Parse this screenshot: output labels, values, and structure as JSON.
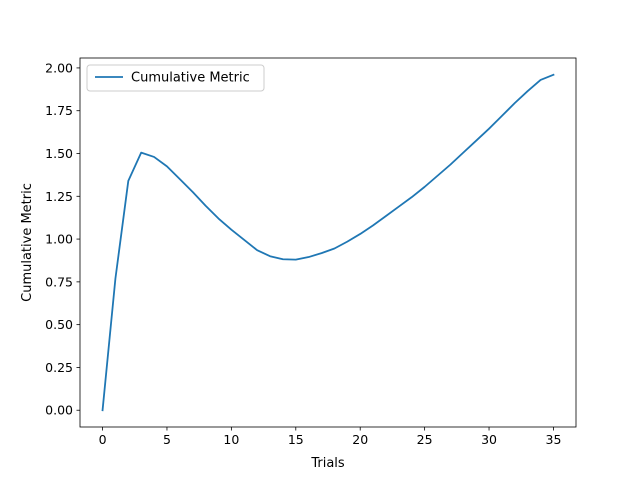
{
  "chart_data": {
    "type": "line",
    "title": "",
    "xlabel": "Trials",
    "ylabel": "Cumulative Metric",
    "xlim": [
      -1.75,
      36.75
    ],
    "ylim": [
      -0.098,
      2.058
    ],
    "xticks": [
      0,
      5,
      10,
      15,
      20,
      25,
      30,
      35
    ],
    "xtick_labels": [
      "0",
      "5",
      "10",
      "15",
      "20",
      "25",
      "30",
      "35"
    ],
    "yticks": [
      0.0,
      0.25,
      0.5,
      0.75,
      1.0,
      1.25,
      1.5,
      1.75,
      2.0
    ],
    "ytick_labels": [
      "0.00",
      "0.25",
      "0.50",
      "0.75",
      "1.00",
      "1.25",
      "1.50",
      "1.75",
      "2.00"
    ],
    "grid": false,
    "legend_position": "upper-left",
    "series": [
      {
        "name": "Cumulative Metric",
        "color": "#1f77b4",
        "x": [
          0,
          1,
          2,
          3,
          4,
          5,
          6,
          7,
          8,
          9,
          10,
          11,
          12,
          13,
          14,
          15,
          16,
          17,
          18,
          19,
          20,
          21,
          22,
          23,
          24,
          25,
          26,
          27,
          28,
          29,
          30,
          31,
          32,
          33,
          34,
          35
        ],
        "y": [
          0.0,
          0.77,
          1.34,
          1.505,
          1.48,
          1.425,
          1.35,
          1.275,
          1.195,
          1.12,
          1.055,
          0.995,
          0.935,
          0.9,
          0.882,
          0.88,
          0.895,
          0.918,
          0.945,
          0.985,
          1.03,
          1.08,
          1.135,
          1.19,
          1.245,
          1.305,
          1.37,
          1.435,
          1.505,
          1.575,
          1.645,
          1.72,
          1.795,
          1.865,
          1.93,
          1.96
        ]
      }
    ]
  }
}
